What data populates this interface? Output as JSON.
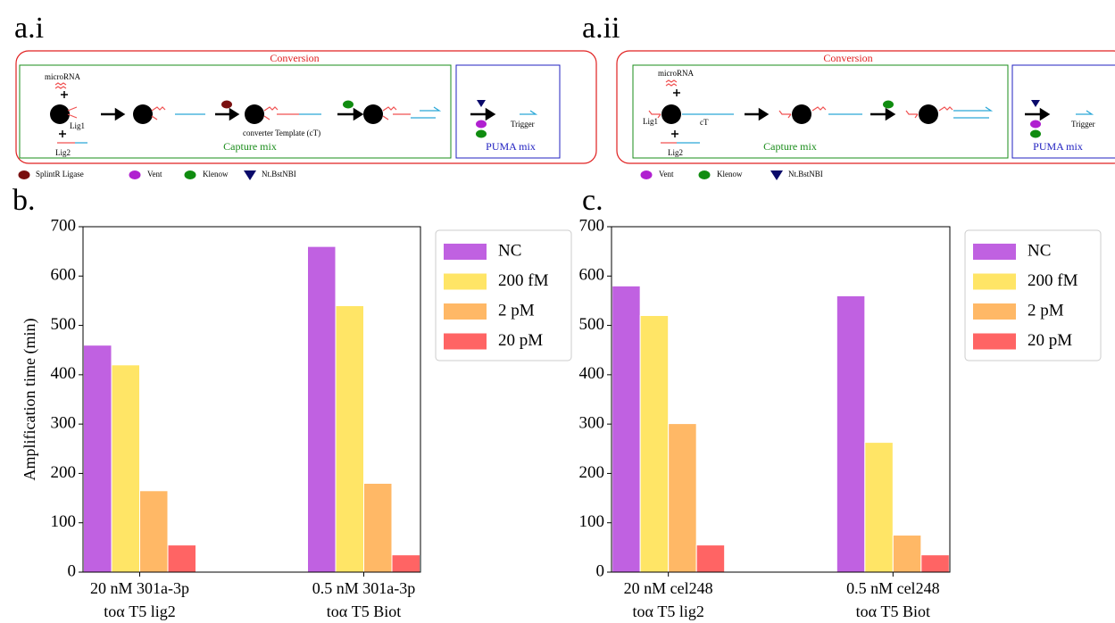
{
  "panels": {
    "a_i": {
      "label": "a.i",
      "group": "Conversion",
      "microrna": "microRNA",
      "lig1": "Lig1",
      "lig2": "Lig2",
      "template": "converter Template (cT)",
      "trigger": "Trigger",
      "capture": "Capture mix",
      "puma": "PUMA mix",
      "legend": [
        "SplintR Ligase",
        "Vent",
        "Klenow",
        "Nt.BstNBI"
      ]
    },
    "a_ii": {
      "label": "a.ii",
      "group": "Conversion",
      "microrna": "microRNA",
      "lig1": "Lig1",
      "ct": "cT",
      "lig2": "Lig2",
      "trigger": "Trigger",
      "capture": "Capture mix",
      "puma": "PUMA mix",
      "legend": [
        "Vent",
        "Klenow",
        "Nt.BstNBI"
      ]
    },
    "b": {
      "label": "b."
    },
    "c": {
      "label": "c."
    }
  },
  "chart_data": [
    {
      "type": "bar",
      "ylabel": "Amplification time (min)",
      "categories": [
        [
          "20 nM 301a-3p",
          "toα T5 lig2"
        ],
        [
          "0.5 nM 301a-3p",
          "toα T5 Biot"
        ]
      ],
      "series": [
        {
          "name": "NC",
          "color": "#c061e1",
          "values": [
            460,
            660
          ]
        },
        {
          "name": "200 fM",
          "color": "#ffe566",
          "values": [
            420,
            540
          ]
        },
        {
          "name": "2 pM",
          "color": "#ffb866",
          "values": [
            165,
            180
          ]
        },
        {
          "name": "20 pM",
          "color": "#ff6464",
          "values": [
            55,
            35
          ]
        }
      ],
      "ylim": [
        0,
        700
      ],
      "yticks": [
        0,
        100,
        200,
        300,
        400,
        500,
        600,
        700
      ],
      "legend": "right"
    },
    {
      "type": "bar",
      "categories": [
        [
          "20 nM cel248",
          "toα T5 lig2"
        ],
        [
          "0.5 nM cel248",
          "toα T5 Biot"
        ]
      ],
      "series": [
        {
          "name": "NC",
          "color": "#c061e1",
          "values": [
            580,
            560
          ]
        },
        {
          "name": "200 fM",
          "color": "#ffe566",
          "values": [
            520,
            263
          ]
        },
        {
          "name": "2 pM",
          "color": "#ffb866",
          "values": [
            301,
            75
          ]
        },
        {
          "name": "20 pM",
          "color": "#ff6464",
          "values": [
            55,
            35
          ]
        }
      ],
      "ylim": [
        0,
        700
      ],
      "yticks": [
        0,
        100,
        200,
        300,
        400,
        500,
        600,
        700
      ],
      "legend": "right"
    }
  ]
}
